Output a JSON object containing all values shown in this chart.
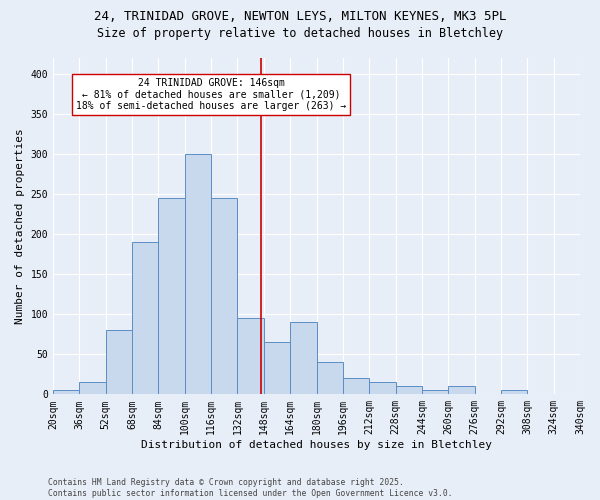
{
  "title1": "24, TRINIDAD GROVE, NEWTON LEYS, MILTON KEYNES, MK3 5PL",
  "title2": "Size of property relative to detached houses in Bletchley",
  "xlabel": "Distribution of detached houses by size in Bletchley",
  "ylabel": "Number of detached properties",
  "footer": "Contains HM Land Registry data © Crown copyright and database right 2025.\nContains public sector information licensed under the Open Government Licence v3.0.",
  "bin_edges": [
    20,
    36,
    52,
    68,
    84,
    100,
    116,
    132,
    148,
    164,
    180,
    196,
    212,
    228,
    244,
    260,
    276,
    292,
    308,
    324,
    340
  ],
  "bar_heights": [
    5,
    15,
    80,
    190,
    245,
    300,
    245,
    95,
    65,
    90,
    40,
    20,
    15,
    10,
    5,
    10,
    0,
    5,
    0,
    0
  ],
  "bar_color": "#c8d9ee",
  "bar_edge_color": "#5b8ec4",
  "property_size": 146,
  "vline_color": "#cc0000",
  "annotation_text": "24 TRINIDAD GROVE: 146sqm\n← 81% of detached houses are smaller (1,209)\n18% of semi-detached houses are larger (263) →",
  "annotation_box_color": "#ffffff",
  "annotation_box_edge": "#cc0000",
  "ylim": [
    0,
    420
  ],
  "xlim": [
    20,
    340
  ],
  "background_color": "#e8eef7",
  "grid_color": "#ffffff",
  "title_fontsize": 9,
  "subtitle_fontsize": 8.5,
  "tick_fontsize": 7,
  "label_fontsize": 8,
  "annotation_fontsize": 7,
  "yticks": [
    0,
    50,
    100,
    150,
    200,
    250,
    300,
    350,
    400
  ]
}
